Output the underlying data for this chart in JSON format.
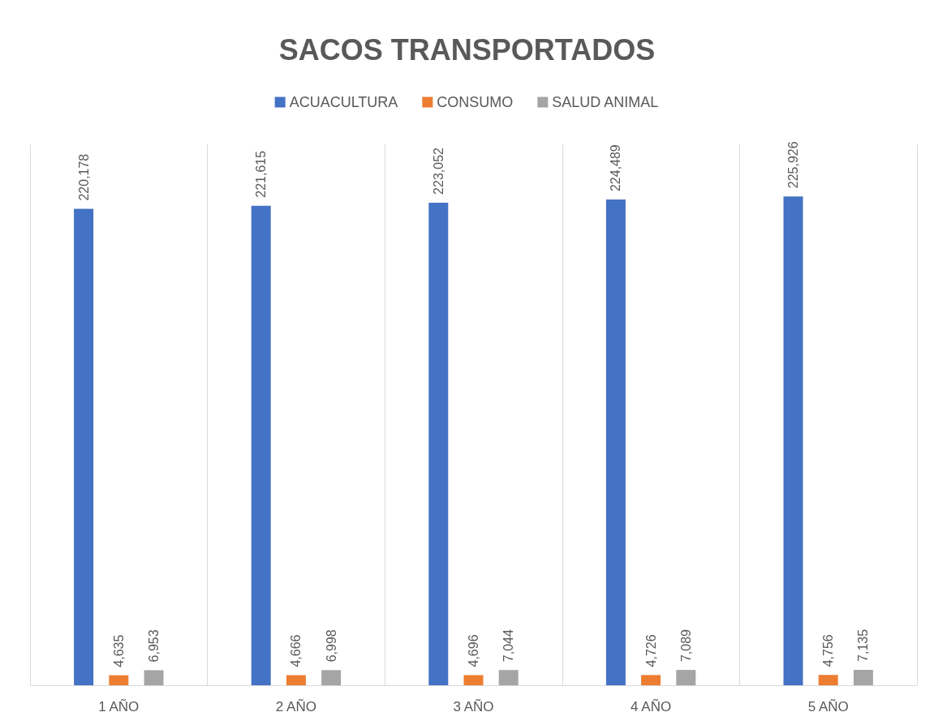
{
  "chart_data": {
    "type": "bar",
    "title": "SACOS TRANSPORTADOS",
    "categories": [
      "1 AÑO",
      "2 AÑO",
      "3 AÑO",
      "4 AÑO",
      "5 AÑO"
    ],
    "series": [
      {
        "name": "ACUACULTURA",
        "color": "#4472c4",
        "values": [
          220178,
          221615,
          223052,
          224489,
          225926
        ],
        "value_labels": [
          "220,178",
          "221,615",
          "223,052",
          "224,489",
          "225,926"
        ]
      },
      {
        "name": "CONSUMO",
        "color": "#ed7d31",
        "values": [
          4635,
          4666,
          4696,
          4726,
          4756
        ],
        "value_labels": [
          "4,635",
          "4,666",
          "4,696",
          "4,726",
          "4,756"
        ]
      },
      {
        "name": "SALUD ANIMAL",
        "color": "#a5a5a5",
        "values": [
          6953,
          6998,
          7044,
          7089,
          7135
        ],
        "value_labels": [
          "6,953",
          "6,998",
          "7,044",
          "7,089",
          "7,135"
        ]
      }
    ],
    "grid": "x",
    "legend": "top"
  }
}
